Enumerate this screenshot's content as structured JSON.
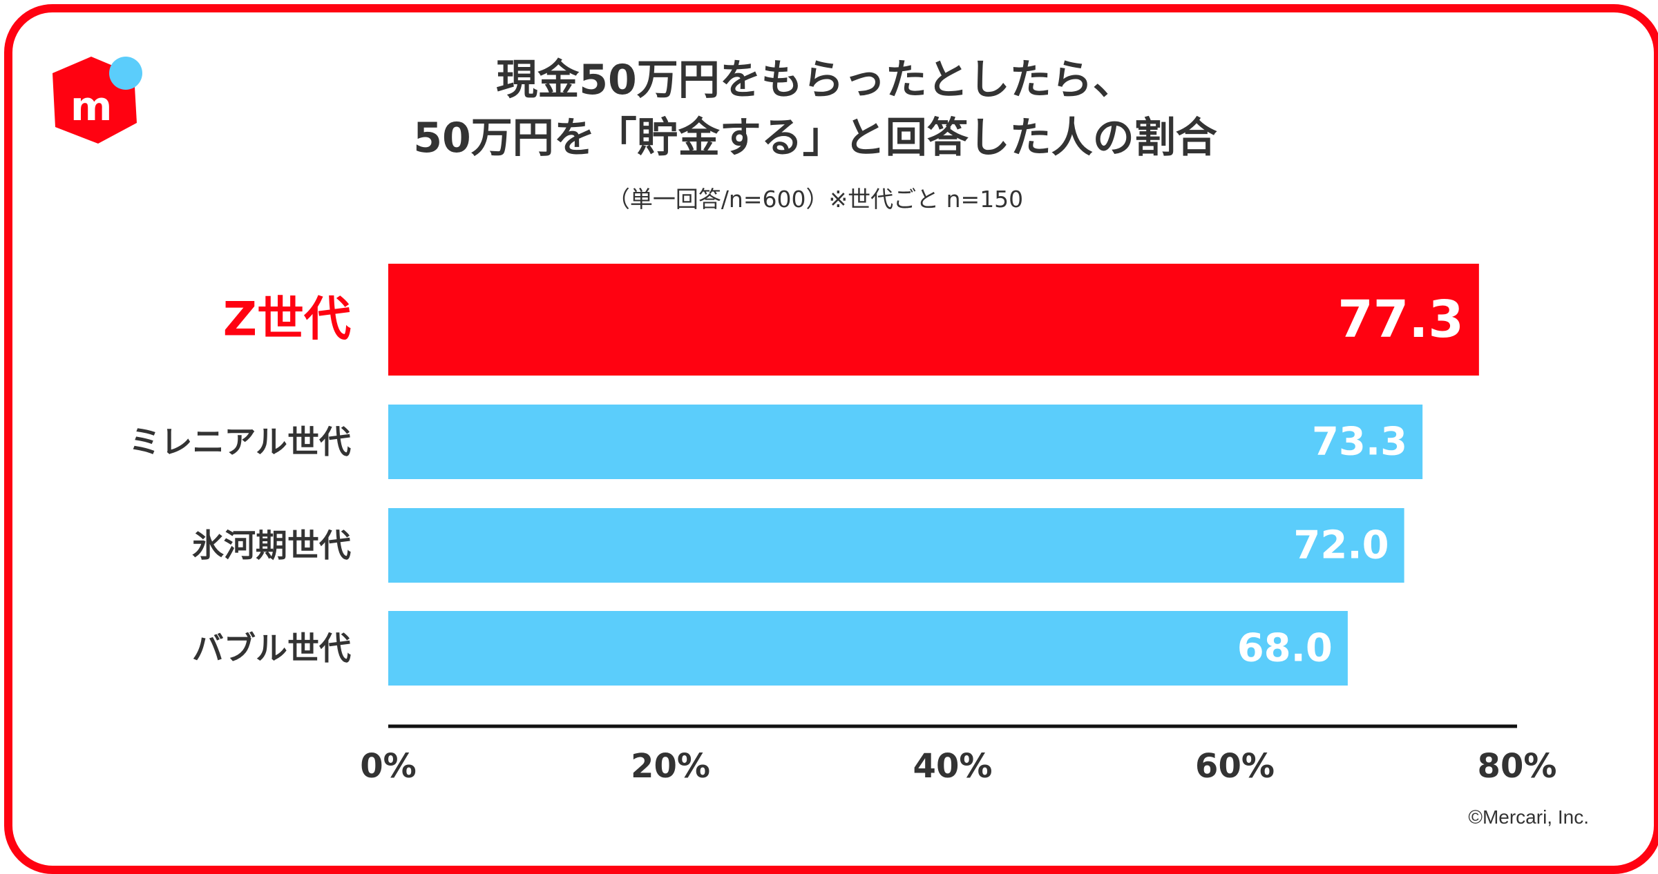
{
  "logo": {
    "icon": "mercari-logo-icon",
    "letter": "m"
  },
  "title_lines": [
    "現金50万円をもらったとしたら、",
    "50万円を「貯金する」と回答した人の割合"
  ],
  "subtitle": "（単一回答/n=600）※世代ごと n=150",
  "credit": "©Mercari, Inc.",
  "colors": {
    "frame": "#ff0211",
    "highlight": "#ff0211",
    "bar": "#5bcdfb",
    "text": "#333333"
  },
  "chart_data": {
    "type": "bar",
    "orientation": "horizontal",
    "categories": [
      "Z世代",
      "ミレニアル世代",
      "氷河期世代",
      "バブル世代"
    ],
    "values": [
      77.3,
      73.3,
      72.0,
      68.0
    ],
    "value_labels": [
      "77.3",
      "73.3",
      "72.0",
      "68.0"
    ],
    "highlight_index": 0,
    "xlim": [
      0,
      80
    ],
    "ticks": [
      0,
      20,
      40,
      60,
      80
    ],
    "tick_labels": [
      "0%",
      "20%",
      "40%",
      "60%",
      "80%"
    ],
    "grid": false
  }
}
